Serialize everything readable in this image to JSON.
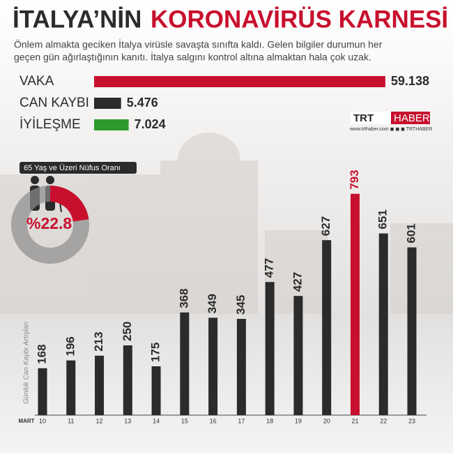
{
  "header": {
    "title": [
      "İTALYA’NİN",
      "KORONAVİRÜS KARNESİ"
    ],
    "subtitle": [
      "Önlem almakta geciken İtalya virüsle savaşta sınıfta kaldı. Gelen bilgiler durumun her",
      "geçen gün ağırlaştığının kanıtı. İtalya salgını kontrol altına almaktan hala çok uzak."
    ]
  },
  "brand": {
    "logo": [
      "TRT",
      "HABER"
    ],
    "footer": "www.trthaber.com  ◼ ◼ ◼ TRTHABER"
  },
  "chart_data": [
    {
      "type": "bar",
      "orientation": "horizontal",
      "categories": [
        "VAKA",
        "CAN KAYBI",
        "İYİLEŞME"
      ],
      "values": [
        59138,
        5476,
        7024
      ],
      "value_labels": [
        "59.138",
        "5.476",
        "7.024"
      ],
      "colors": [
        "#c8102e",
        "#2b2b2b",
        "#2e9a2e"
      ],
      "xlim": [
        0,
        60000
      ]
    },
    {
      "type": "pie",
      "donut": true,
      "title": "65 Yaş ve Üzeri Nüfus Oranı",
      "values": [
        22.8
      ],
      "value_labels": [
        "%22.8"
      ],
      "colors": [
        "#c8102e"
      ],
      "track_color": "#8d8d8d"
    },
    {
      "type": "bar",
      "orientation": "vertical",
      "x_label": "MART",
      "y_label": "Günlük Can Kaybı Artışları",
      "categories": [
        "10",
        "11",
        "12",
        "13",
        "14",
        "15",
        "16",
        "17",
        "18",
        "19",
        "20",
        "21",
        "22",
        "23"
      ],
      "values": [
        168,
        196,
        213,
        250,
        175,
        368,
        349,
        345,
        477,
        427,
        627,
        793,
        651,
        601
      ],
      "colors": [
        "#2b2b2b",
        "#2b2b2b",
        "#2b2b2b",
        "#2b2b2b",
        "#2b2b2b",
        "#2b2b2b",
        "#2b2b2b",
        "#2b2b2b",
        "#2b2b2b",
        "#2b2b2b",
        "#2b2b2b",
        "#c8102e",
        "#2b2b2b",
        "#2b2b2b"
      ],
      "ylim": [
        0,
        800
      ]
    }
  ]
}
